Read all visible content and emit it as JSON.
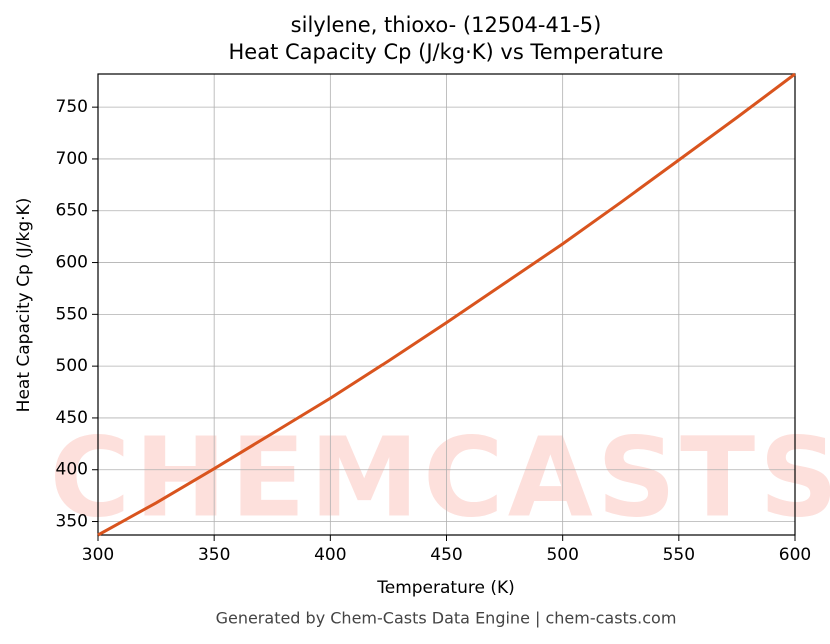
{
  "chart_data": {
    "type": "line",
    "title": "silylene, thioxo- (12504-41-5)",
    "subtitle": "Heat Capacity Cp (J/kg·K) vs Temperature",
    "x_label": "Temperature (K)",
    "y_label": "Heat Capacity Cp (J/kg·K)",
    "footer": "Generated by Chem-Casts Data Engine | chem-casts.com",
    "watermark": "CHEMCASTS",
    "x": [
      300,
      325,
      350,
      375,
      400,
      425,
      450,
      475,
      500,
      525,
      550,
      575,
      600
    ],
    "series": [
      {
        "name": "Cp",
        "color": "#d9541e",
        "values": [
          337,
          368,
          401,
          435,
          469,
          505,
          542,
          580,
          618,
          658,
          699,
          740,
          782
        ]
      }
    ],
    "xlim": [
      300,
      600
    ],
    "xticks": [
      300,
      350,
      400,
      450,
      500,
      550,
      600
    ],
    "ylim": [
      337,
      782
    ],
    "yticks": [
      350,
      400,
      450,
      500,
      550,
      600,
      650,
      700,
      750
    ],
    "grid": true
  }
}
